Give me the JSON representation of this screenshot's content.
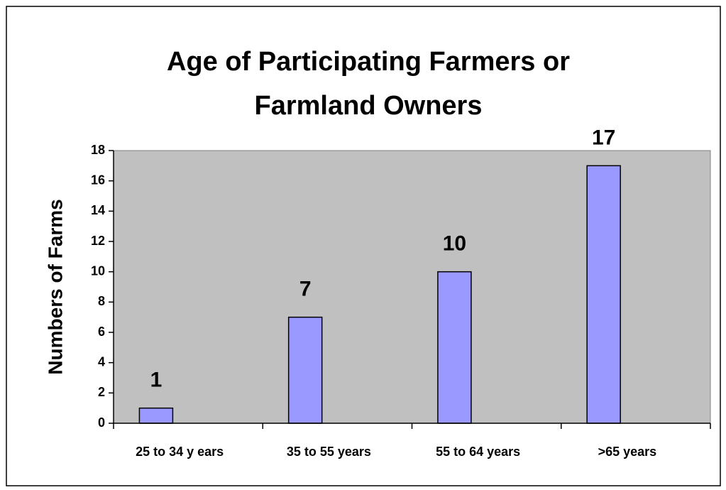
{
  "chart_data": {
    "type": "bar",
    "title": "Age of Participating Farmers or Farmland Owners",
    "y_label": "Numbers of Farms",
    "categories": [
      "25 to 34 y ears",
      "35 to 55 years",
      "55 to 64 years",
      ">65 years"
    ],
    "values": [
      1,
      7,
      10,
      17
    ],
    "color": "#9999ff",
    "plot_background": "#c0c0c0",
    "ylim": [
      0,
      18
    ],
    "yticks": [
      0,
      2,
      4,
      6,
      8,
      10,
      12,
      14,
      16,
      18
    ],
    "grid": false
  }
}
